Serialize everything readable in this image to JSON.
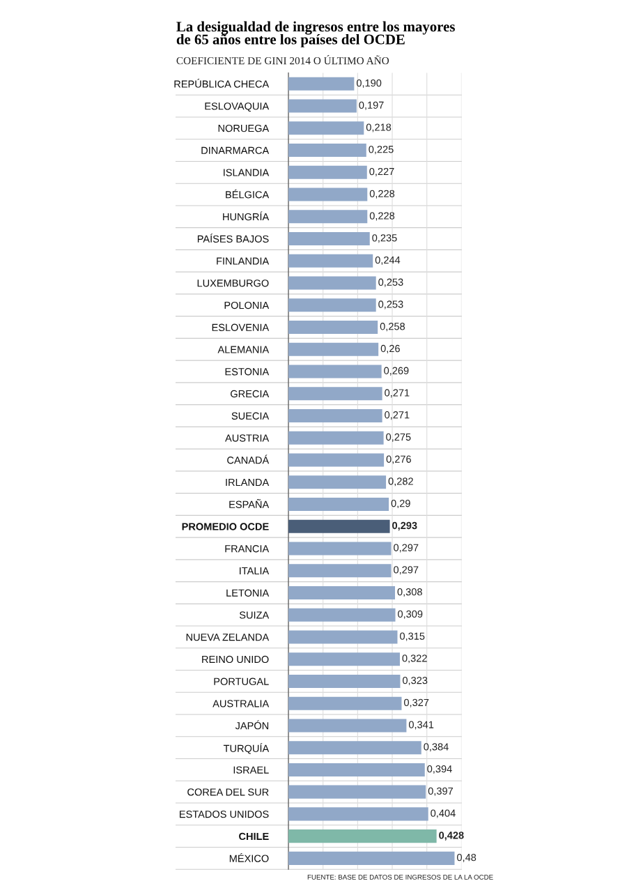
{
  "chart_data": {
    "type": "bar",
    "orientation": "horizontal",
    "title": "La desigualdad de ingresos entre los mayores\nde 65 años entre los países del OCDE",
    "subtitle": "COEFICIENTE DE GINI 2014 O ÚLTIMO AÑO",
    "categories": [
      "REPÚBLICA CHECA",
      "ESLOVAQUIA",
      "NORUEGA",
      "DINARMARCA",
      "ISLANDIA",
      "BÉLGICA",
      "HUNGRÍA",
      "PAÍSES BAJOS",
      "FINLANDIA",
      "LUXEMBURGO",
      "POLONIA",
      "ESLOVENIA",
      "ALEMANIA",
      "ESTONIA",
      "GRECIA",
      "SUECIA",
      "AUSTRIA",
      "CANADÁ",
      "IRLANDA",
      "ESPAÑA",
      "PROMEDIO OCDE",
      "FRANCIA",
      "ITALIA",
      "LETONIA",
      "SUIZA",
      "NUEVA ZELANDA",
      "REINO UNIDO",
      "PORTUGAL",
      "AUSTRALIA",
      "JAPÓN",
      "TURQUÍA",
      "ISRAEL",
      "COREA DEL SUR",
      "ESTADOS UNIDOS",
      "CHILE",
      "MÉXICO"
    ],
    "values": [
      0.19,
      0.197,
      0.218,
      0.225,
      0.227,
      0.228,
      0.228,
      0.235,
      0.244,
      0.253,
      0.253,
      0.258,
      0.26,
      0.269,
      0.271,
      0.271,
      0.275,
      0.276,
      0.282,
      0.29,
      0.293,
      0.297,
      0.297,
      0.308,
      0.309,
      0.315,
      0.322,
      0.323,
      0.327,
      0.341,
      0.384,
      0.394,
      0.397,
      0.404,
      0.428,
      0.48
    ],
    "value_labels": [
      "0,190",
      "0,197",
      "0,218",
      "0,225",
      "0,227",
      "0,228",
      "0,228",
      "0,235",
      "0,244",
      "0,253",
      "0,253",
      "0,258",
      "0,26",
      "0,269",
      "0,271",
      "0,271",
      "0,275",
      "0,276",
      "0,282",
      "0,29",
      "0,293",
      "0,297",
      "0,297",
      "0,308",
      "0,309",
      "0,315",
      "0,322",
      "0,323",
      "0,327",
      "0,341",
      "0,384",
      "0,394",
      "0,397",
      "0,404",
      "0,428",
      "0,48"
    ],
    "colors": [
      "#91a8c8",
      "#91a8c8",
      "#91a8c8",
      "#91a8c8",
      "#91a8c8",
      "#91a8c8",
      "#91a8c8",
      "#91a8c8",
      "#91a8c8",
      "#91a8c8",
      "#91a8c8",
      "#91a8c8",
      "#91a8c8",
      "#91a8c8",
      "#91a8c8",
      "#91a8c8",
      "#91a8c8",
      "#91a8c8",
      "#91a8c8",
      "#91a8c8",
      "#4a5e78",
      "#91a8c8",
      "#91a8c8",
      "#91a8c8",
      "#91a8c8",
      "#91a8c8",
      "#91a8c8",
      "#91a8c8",
      "#91a8c8",
      "#91a8c8",
      "#91a8c8",
      "#91a8c8",
      "#91a8c8",
      "#91a8c8",
      "#7fb8a8",
      "#91a8c8"
    ],
    "xlim": [
      0,
      0.5
    ],
    "xticks": [
      {
        "value": 0,
        "label": null
      },
      {
        "value": 0.1,
        "label": null
      },
      {
        "value": 0.2,
        "label": null
      },
      {
        "value": 0.3,
        "label": null
      },
      {
        "value": 0.4,
        "label": null
      },
      {
        "value": 0.5,
        "label": null
      }
    ],
    "tick_labels": "y",
    "grid": true,
    "annotations": [
      "FUENTE: BASE DE DATOS DE INGRESOS DE LA LA OCDE"
    ]
  }
}
